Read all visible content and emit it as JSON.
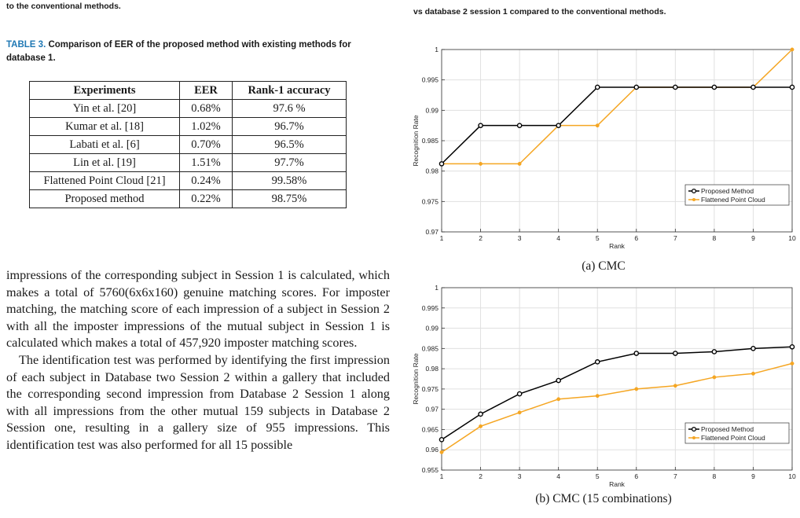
{
  "left_top_caption": "to the conventional methods.",
  "right_top_caption": "vs database 2 session 1 compared to the conventional methods.",
  "table": {
    "label": "TABLE 3.",
    "caption": "Comparison of EER of the proposed method with existing methods for database 1.",
    "headers": [
      "Experiments",
      "EER",
      "Rank-1 accuracy"
    ],
    "rows": [
      [
        "Yin et al. [20]",
        "0.68%",
        "97.6 %"
      ],
      [
        "Kumar et al. [18]",
        "1.02%",
        "96.7%"
      ],
      [
        "Labati et al. [6]",
        "0.70%",
        "96.5%"
      ],
      [
        "Lin et al. [19]",
        "1.51%",
        "97.7%"
      ],
      [
        "Flattened Point Cloud [21]",
        "0.24%",
        "99.58%"
      ],
      [
        "Proposed method",
        "0.22%",
        "98.75%"
      ]
    ]
  },
  "body": {
    "paragraph1": "impressions of the corresponding subject in Session 1 is calculated, which makes a total of 5760(6x6x160) genuine matching scores. For imposter matching, the matching score of each impression of a subject in Session 2 with all the imposter impressions of the mutual subject in Session 1 is calculated which makes a total of 457,920 imposter matching scores.",
    "paragraph2": "The identification test was performed by identifying the first impression of each subject in Database two Session 2 within a gallery that included the corresponding second impression from Database 2 Session 1 along with all impressions from the other mutual 159 subjects in Database 2 Session one, resulting in a gallery size of 955 impressions. This identification test was also performed for all 15 possible"
  },
  "chart_data": [
    {
      "type": "line",
      "subcaption": "(a) CMC",
      "xlabel": "Rank",
      "ylabel": "Recognition Rate",
      "x": [
        1,
        2,
        3,
        4,
        5,
        6,
        7,
        8,
        9,
        10
      ],
      "xlim": [
        1,
        10
      ],
      "ylim": [
        0.97,
        1
      ],
      "yticks": [
        0.97,
        0.975,
        0.98,
        0.985,
        0.99,
        0.995,
        1
      ],
      "ytick_labels": [
        "0.97",
        "0.975",
        "0.98",
        "0.985",
        "0.99",
        "0.995",
        "1"
      ],
      "xticks": [
        1,
        2,
        3,
        4,
        5,
        6,
        7,
        8,
        9,
        10
      ],
      "grid": true,
      "legend_position": "bottom-right",
      "series": [
        {
          "name": "Proposed Method",
          "color": "#000000",
          "marker": "circle",
          "values": [
            0.9812,
            0.9875,
            0.9875,
            0.9875,
            0.9938,
            0.9938,
            0.9938,
            0.9938,
            0.9938,
            0.9938
          ]
        },
        {
          "name": "Flattened Point Cloud",
          "color": "#f5a623",
          "marker": "dot",
          "values": [
            0.9812,
            0.9812,
            0.9812,
            0.9875,
            0.9875,
            0.9938,
            0.9938,
            0.9938,
            0.9938,
            1.0
          ]
        }
      ]
    },
    {
      "type": "line",
      "subcaption": "(b) CMC (15 combinations)",
      "xlabel": "Rank",
      "ylabel": "Recognition Rate",
      "x": [
        1,
        2,
        3,
        4,
        5,
        6,
        7,
        8,
        9,
        10
      ],
      "xlim": [
        1,
        10
      ],
      "ylim": [
        0.955,
        1
      ],
      "yticks": [
        0.955,
        0.96,
        0.965,
        0.97,
        0.975,
        0.98,
        0.985,
        0.99,
        0.995,
        1
      ],
      "ytick_labels": [
        "0.955",
        "0.96",
        "0.965",
        "0.97",
        "0.975",
        "0.98",
        "0.985",
        "0.99",
        "0.995",
        "1"
      ],
      "xticks": [
        1,
        2,
        3,
        4,
        5,
        6,
        7,
        8,
        9,
        10
      ],
      "grid": true,
      "legend_position": "bottom-right",
      "series": [
        {
          "name": "Proposed Method",
          "color": "#000000",
          "marker": "circle",
          "values": [
            0.9625,
            0.9688,
            0.9738,
            0.9771,
            0.9817,
            0.9838,
            0.9838,
            0.9842,
            0.985,
            0.9854
          ]
        },
        {
          "name": "Flattened Point Cloud",
          "color": "#f5a623",
          "marker": "dot",
          "values": [
            0.9594,
            0.9658,
            0.9692,
            0.9725,
            0.9733,
            0.975,
            0.9758,
            0.9779,
            0.9788,
            0.9813
          ]
        }
      ]
    }
  ]
}
